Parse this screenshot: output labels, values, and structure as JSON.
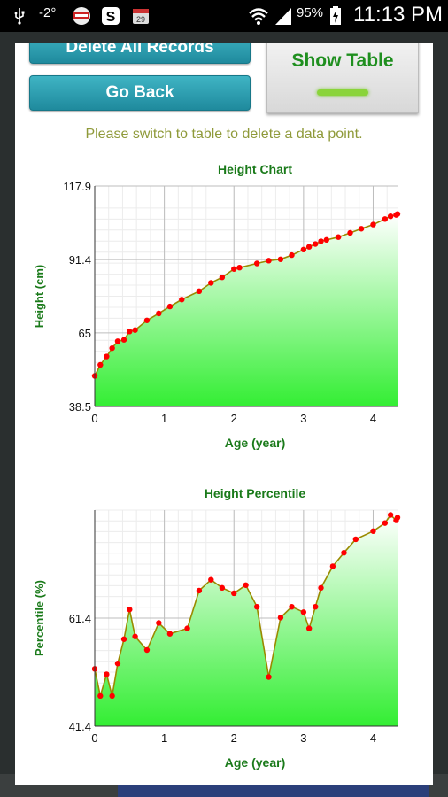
{
  "status_bar": {
    "temperature": "-2°",
    "battery": "95%",
    "time": "11:13 PM",
    "icons": [
      "usb-icon",
      "weather-icon",
      "news-icon",
      "s-app-icon",
      "calendar-icon",
      "wifi-icon",
      "signal-icon",
      "battery-icon"
    ]
  },
  "dialog": {
    "delete_all_label": "Delete All Records",
    "go_back_label": "Go Back",
    "show_table_label": "Show Table",
    "hint": "Please switch to table to delete a data point."
  },
  "colors": {
    "accent_teal": "#2a9fb1",
    "title_green": "#1a7a1a",
    "line": "#9a8a00",
    "point": "#ff0000",
    "fill": "#33ee33"
  },
  "chart_data": [
    {
      "type": "area",
      "title": "Height Chart",
      "xlabel": "Age (year)",
      "ylabel": "Height (cm)",
      "xlim": [
        0,
        4.35
      ],
      "ylim": [
        38.5,
        117.9
      ],
      "xticks": [
        "0",
        "1",
        "2",
        "3",
        "4"
      ],
      "yticks": [
        "38.5",
        "65",
        "91.4",
        "117.9"
      ],
      "grid": true,
      "x": [
        0,
        0.08,
        0.17,
        0.25,
        0.33,
        0.42,
        0.5,
        0.58,
        0.75,
        0.92,
        1.08,
        1.25,
        1.5,
        1.67,
        1.83,
        2.0,
        2.08,
        2.33,
        2.5,
        2.67,
        2.83,
        3.0,
        3.08,
        3.17,
        3.25,
        3.33,
        3.5,
        3.67,
        3.83,
        4.0,
        4.17,
        4.25,
        4.33,
        4.35
      ],
      "y": [
        49.5,
        53.5,
        56.5,
        59.5,
        62.0,
        62.5,
        65.5,
        66.0,
        69.5,
        72.0,
        74.5,
        77.0,
        80.0,
        83.0,
        85.0,
        88.0,
        88.5,
        90.0,
        91.0,
        91.5,
        93.0,
        95.0,
        96.0,
        97.0,
        98.0,
        98.5,
        99.5,
        101.0,
        102.5,
        104.0,
        106.0,
        107.0,
        107.5,
        107.8
      ]
    },
    {
      "type": "area",
      "title": "Height Percentile",
      "xlabel": "Age (year)",
      "ylabel": "Percentile (%)",
      "xlim": [
        0,
        4.35
      ],
      "ylim": [
        41.4,
        81.4
      ],
      "xticks": [
        "0",
        "1",
        "2",
        "3",
        "4"
      ],
      "yticks": [
        "41.4",
        "61.4"
      ],
      "grid": true,
      "x": [
        0,
        0.08,
        0.17,
        0.25,
        0.33,
        0.42,
        0.5,
        0.58,
        0.75,
        0.92,
        1.08,
        1.33,
        1.5,
        1.67,
        1.83,
        2.0,
        2.17,
        2.33,
        2.5,
        2.67,
        2.83,
        3.0,
        3.08,
        3.17,
        3.25,
        3.42,
        3.58,
        3.75,
        4.0,
        4.17,
        4.25,
        4.33,
        4.35
      ],
      "y": [
        52.0,
        47.0,
        51.0,
        47.0,
        53.0,
        57.5,
        63.0,
        58.0,
        55.5,
        60.5,
        58.5,
        59.5,
        66.5,
        68.5,
        67.0,
        66.0,
        67.5,
        63.5,
        50.5,
        61.5,
        63.5,
        62.5,
        59.5,
        63.5,
        67.0,
        71.0,
        73.5,
        76.0,
        77.5,
        79.0,
        80.5,
        79.5,
        80.0
      ]
    }
  ]
}
